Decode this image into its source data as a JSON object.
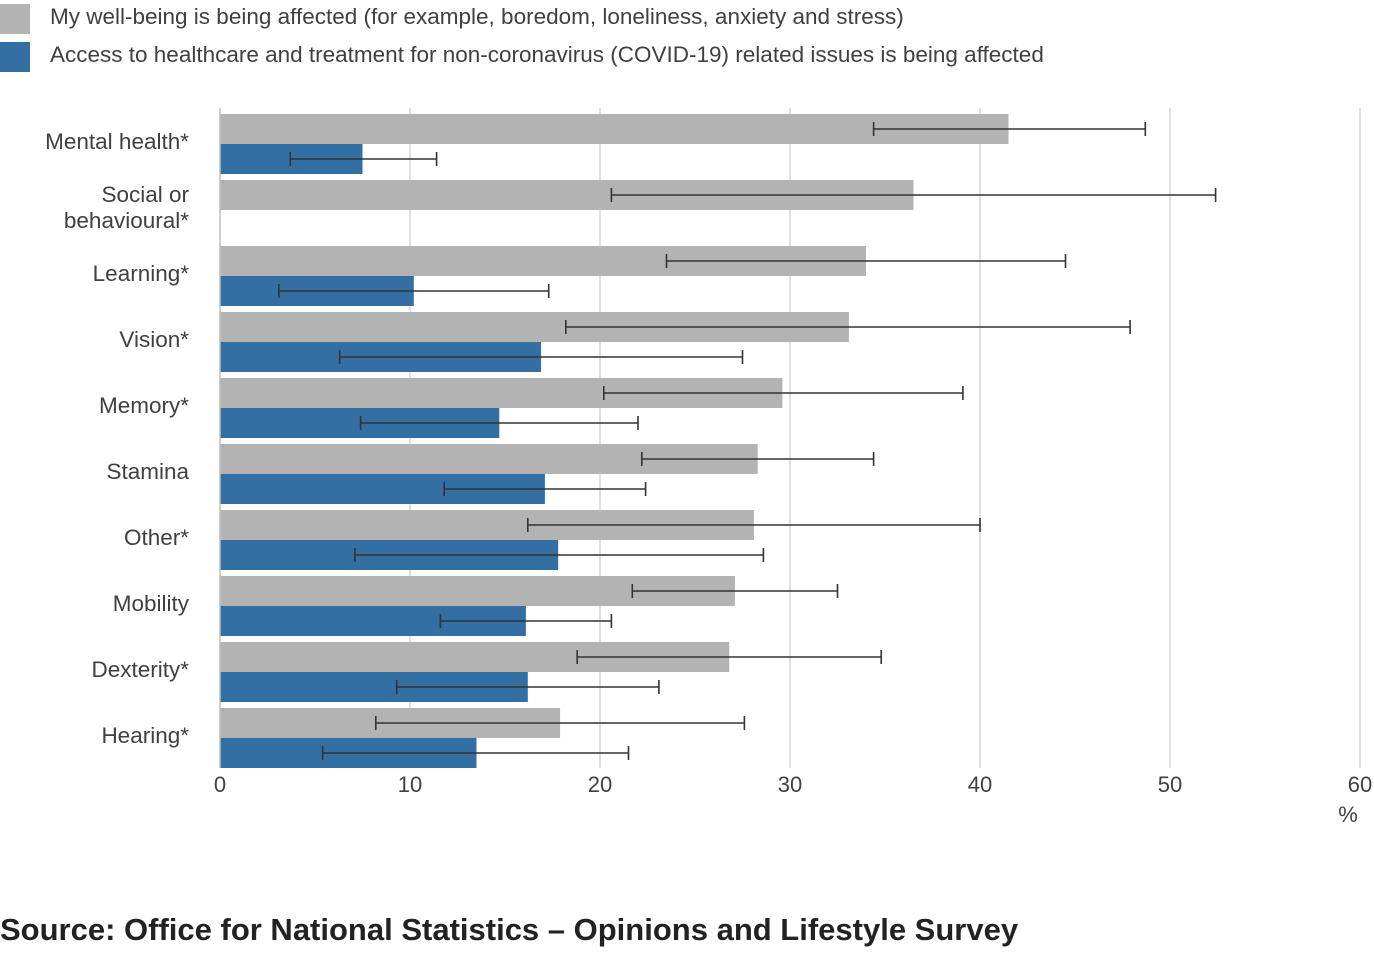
{
  "chart_data": {
    "type": "bar",
    "orientation": "horizontal",
    "title": "",
    "xlabel": "",
    "ylabel": "",
    "x_unit_label": "%",
    "xlim": [
      0,
      60
    ],
    "xticks": [
      0,
      10,
      20,
      30,
      40,
      50,
      60
    ],
    "grid": "vertical",
    "legend_position": "top-left",
    "categories": [
      "Mental health*",
      "Social or behavioural*",
      "Learning*",
      "Vision*",
      "Memory*",
      "Stamina",
      "Other*",
      "Mobility",
      "Dexterity*",
      "Hearing*"
    ],
    "series": [
      {
        "name": "My well-being is being affected (for example, boredom, loneliness, anxiety and stress)",
        "color": "#b3b3b3",
        "values": [
          41.5,
          36.5,
          34.0,
          33.1,
          29.6,
          28.3,
          28.1,
          27.1,
          26.8,
          17.9
        ],
        "ci_lower": [
          34.4,
          20.6,
          23.5,
          18.2,
          20.2,
          22.2,
          16.2,
          21.7,
          18.8,
          8.2
        ],
        "ci_upper": [
          48.7,
          52.4,
          44.5,
          47.9,
          39.1,
          34.4,
          40.0,
          32.5,
          34.8,
          27.6
        ]
      },
      {
        "name": "Access to healthcare and treatment for non-coronavirus (COVID-19) related issues is being affected",
        "color": "#336fa3",
        "values": [
          7.5,
          0,
          10.2,
          16.9,
          14.7,
          17.1,
          17.8,
          16.1,
          16.2,
          13.5
        ],
        "ci_lower": [
          3.7,
          0,
          3.1,
          6.3,
          7.4,
          11.8,
          7.1,
          11.6,
          9.3,
          5.4
        ],
        "ci_upper": [
          11.4,
          0,
          17.3,
          27.5,
          22.0,
          22.4,
          28.6,
          20.6,
          23.1,
          21.5
        ]
      }
    ]
  },
  "source": "Source: Office for National Statistics – Opinions and Lifestyle Survey"
}
